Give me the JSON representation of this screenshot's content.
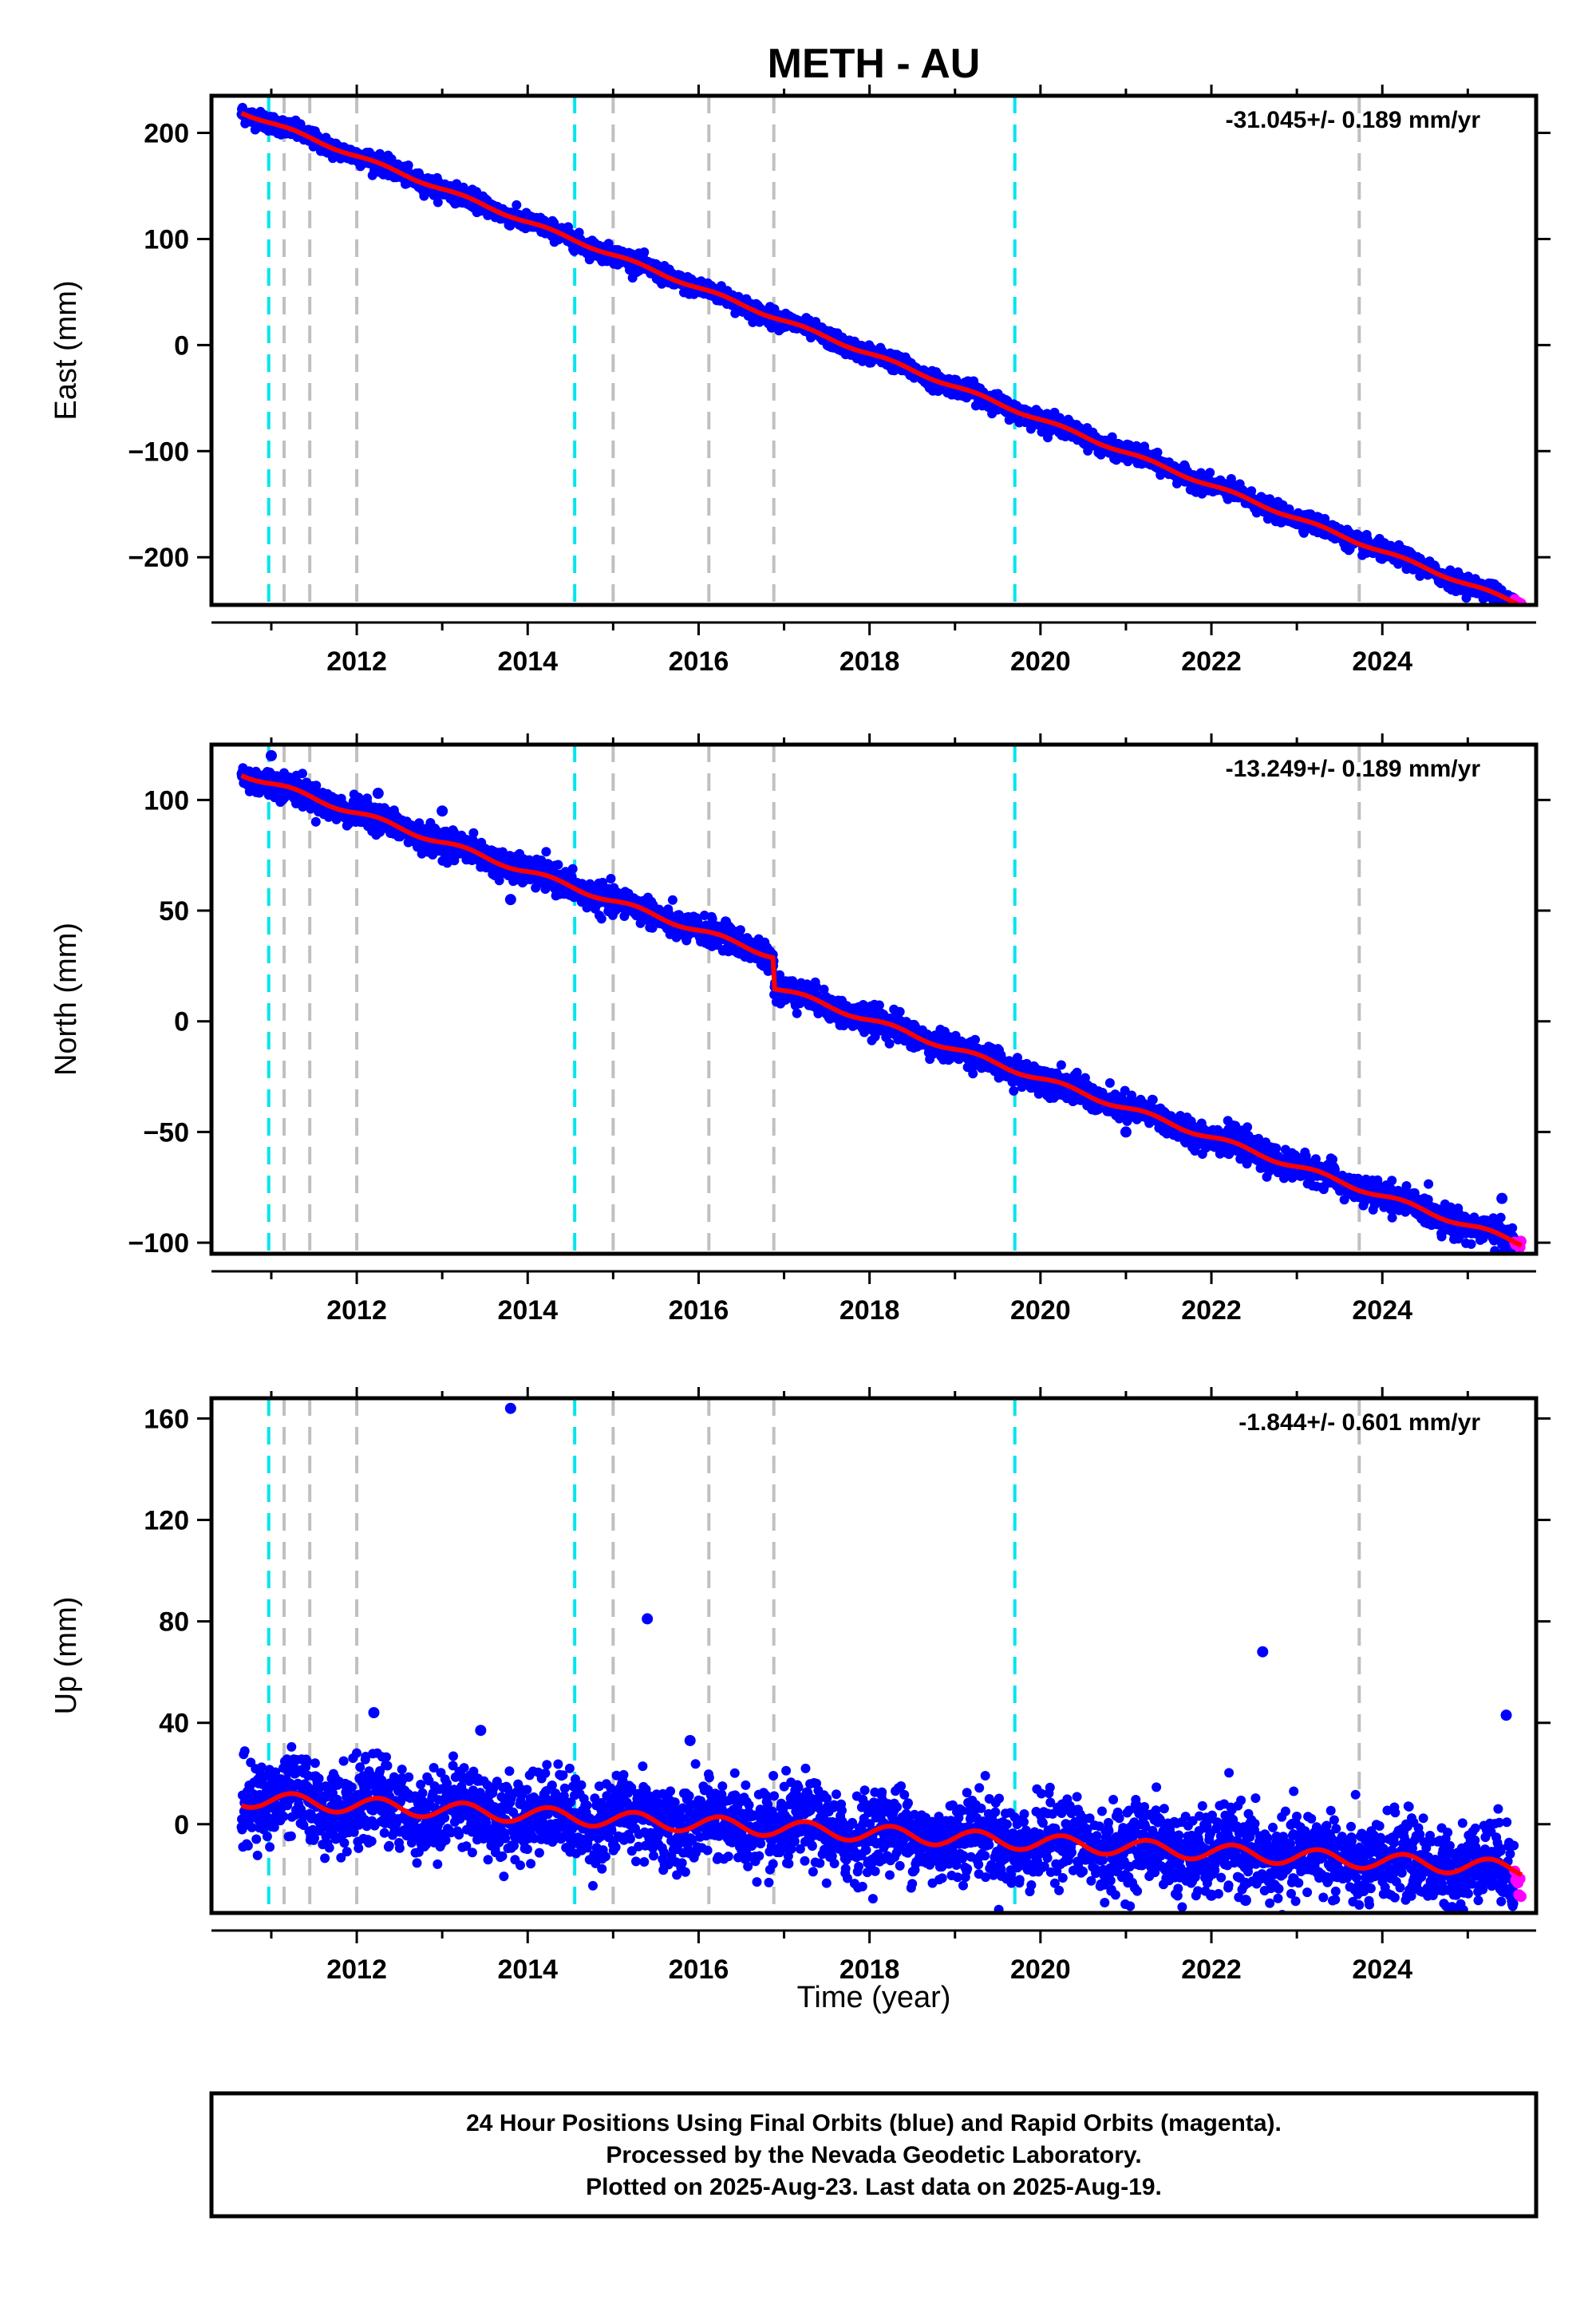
{
  "title": "METH - AU",
  "xlabel": "Time (year)",
  "footer": {
    "line1": "24 Hour Positions Using Final Orbits (blue) and Rapid Orbits (magenta).",
    "line2": "Processed by the Nevada Geodetic Laboratory.",
    "line3": "Plotted on 2025-Aug-23. Last data on 2025-Aug-19."
  },
  "colors": {
    "final_orbits": "#0000ff",
    "rapid_orbits": "#ff00ff",
    "model": "#ff0000",
    "antenna_change": "#00e5ee",
    "equipment_change": "#c0c0c0"
  },
  "chart_data": [
    {
      "type": "scatter",
      "ylabel": "East (mm)",
      "rate_label": "-31.045+/- 0.189 mm/yr",
      "xlim": [
        2010.3,
        2025.8
      ],
      "ylim": [
        -245,
        235
      ],
      "x_ticks": [
        2012,
        2014,
        2016,
        2018,
        2020,
        2022,
        2024
      ],
      "x_tick_labels": [
        "2012",
        "2014",
        "2016",
        "2018",
        "2020",
        "2022",
        "2024"
      ],
      "y_ticks": [
        -200,
        -100,
        0,
        100,
        200
      ],
      "y_tick_labels": [
        "−200",
        "−100",
        "0",
        "100",
        "200"
      ],
      "start": {
        "t": 2010.65,
        "y": 220
      },
      "rate": -31.045,
      "scatter": 4,
      "offsets": [],
      "final_data_end": 2025.55,
      "last_data": 2025.63,
      "outliers": []
    },
    {
      "type": "scatter",
      "ylabel": "North (mm)",
      "rate_label": "-13.249+/- 0.189 mm/yr",
      "xlim": [
        2010.3,
        2025.8
      ],
      "ylim": [
        -105,
        125
      ],
      "x_ticks": [
        2012,
        2014,
        2016,
        2018,
        2020,
        2022,
        2024
      ],
      "x_tick_labels": [
        "2012",
        "2014",
        "2016",
        "2018",
        "2020",
        "2022",
        "2024"
      ],
      "y_ticks": [
        -100,
        -50,
        0,
        50,
        100
      ],
      "y_tick_labels": [
        "−100",
        "−50",
        "0",
        "50",
        "100"
      ],
      "start": {
        "t": 2010.65,
        "y": 112
      },
      "rate": -13.249,
      "scatter": 3,
      "offsets": [
        {
          "t": 2016.88,
          "dy": -14
        }
      ],
      "final_data_end": 2025.55,
      "last_data": 2025.63,
      "outliers": [
        {
          "t": 2011.0,
          "y": 120
        },
        {
          "t": 2012.25,
          "y": 103
        },
        {
          "t": 2013.0,
          "y": 95
        },
        {
          "t": 2013.8,
          "y": 55
        },
        {
          "t": 2021.0,
          "y": -50
        },
        {
          "t": 2025.4,
          "y": -80
        }
      ]
    },
    {
      "type": "scatter",
      "ylabel": "Up (mm)",
      "rate_label": "-1.844+/- 0.601 mm/yr",
      "xlim": [
        2010.3,
        2025.8
      ],
      "ylim": [
        -35,
        168
      ],
      "x_ticks": [
        2012,
        2014,
        2016,
        2018,
        2020,
        2022,
        2024
      ],
      "x_tick_labels": [
        "2012",
        "2014",
        "2016",
        "2018",
        "2020",
        "2022",
        "2024"
      ],
      "y_ticks": [
        0,
        40,
        80,
        120,
        160
      ],
      "y_tick_labels": [
        "0",
        "40",
        "80",
        "120",
        "160"
      ],
      "start": {
        "t": 2010.65,
        "y": 10
      },
      "rate": -1.844,
      "scatter": 8,
      "offsets": [],
      "final_data_end": 2025.55,
      "last_data": 2025.63,
      "outliers": [
        {
          "t": 2013.8,
          "y": 164
        },
        {
          "t": 2015.4,
          "y": 81
        },
        {
          "t": 2022.6,
          "y": 68
        },
        {
          "t": 2025.45,
          "y": 43
        },
        {
          "t": 2012.2,
          "y": 44
        },
        {
          "t": 2013.45,
          "y": 37
        },
        {
          "t": 2015.9,
          "y": 33
        },
        {
          "t": 2022.0,
          "y": -28
        },
        {
          "t": 2022.4,
          "y": -30
        }
      ]
    }
  ],
  "event_lines": {
    "antenna": [
      2010.97,
      2014.55,
      2019.7
    ],
    "equipment": [
      2011.15,
      2011.45,
      2012.0,
      2015.0,
      2016.12,
      2016.88,
      2023.73
    ]
  }
}
